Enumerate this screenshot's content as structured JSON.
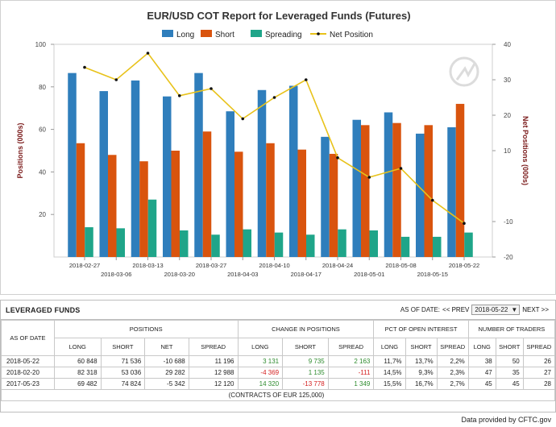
{
  "chart_data": {
    "type": "bar",
    "title": "EUR/USD COT Report for Leveraged Funds (Futures)",
    "ylabel_left": "Positions (000s)",
    "ylabel_right": "Net Positions (000s)",
    "ylim_left": [
      0,
      100
    ],
    "ylim_right": [
      -20,
      40
    ],
    "yticks_left": [
      "100",
      "80",
      "60",
      "40",
      "20"
    ],
    "yticks_right": [
      "40",
      "30",
      "20",
      "10",
      "-10",
      "-20"
    ],
    "categories": [
      "2018-02-27",
      "2018-03-06",
      "2018-03-13",
      "2018-03-20",
      "2018-03-27",
      "2018-04-03",
      "2018-04-10",
      "2018-04-17",
      "2018-04-24",
      "2018-05-01",
      "2018-05-08",
      "2018-05-15",
      "2018-05-22"
    ],
    "series": [
      {
        "name": "Long",
        "kind": "bar",
        "color": "#2f7ebc",
        "values": [
          86.5,
          78,
          83,
          75.5,
          86.5,
          68.5,
          78.5,
          80.5,
          56.5,
          64.5,
          68,
          58,
          61
        ]
      },
      {
        "name": "Short",
        "kind": "bar",
        "color": "#d9540e",
        "values": [
          53.5,
          48,
          45,
          50,
          59,
          49.5,
          53.5,
          50.5,
          48.5,
          62,
          63,
          62,
          72
        ]
      },
      {
        "name": "Spreading",
        "kind": "bar",
        "color": "#1fa589",
        "values": [
          14,
          13.5,
          27,
          12.5,
          10.5,
          13,
          11.5,
          10.5,
          13,
          12.5,
          9.5,
          9.5,
          11.5
        ]
      },
      {
        "name": "Net Position",
        "kind": "line",
        "axis": "right",
        "color": "#e8c21a",
        "values": [
          33.5,
          30,
          37.5,
          25.5,
          27.5,
          19,
          25,
          30,
          8,
          2.5,
          5,
          -4,
          -10.5
        ]
      }
    ],
    "legend_position": "top"
  },
  "table": {
    "title": "LEVERAGED FUNDS",
    "asof_label": "AS OF DATE:",
    "prev_label": "<< PREV",
    "selected_date": "2018-05-22",
    "next_label": "NEXT >>",
    "group_headers": {
      "asof": "AS OF DATE",
      "positions": "POSITIONS",
      "change": "CHANGE IN POSITIONS",
      "pct": "PCT OF OPEN INTEREST",
      "traders": "NUMBER OF TRADERS"
    },
    "columns": [
      "LONG",
      "SHORT",
      "NET",
      "SPREAD",
      "LONG",
      "SHORT",
      "SPREAD",
      "LONG",
      "SHORT",
      "SPREAD",
      "LONG",
      "SHORT",
      "SPREAD"
    ],
    "rows": [
      {
        "date": "2018-05-22",
        "cells": [
          "60 848",
          "71 536",
          "-10 688",
          "11 196",
          "3 131",
          "9 735",
          "2 163",
          "11,7%",
          "13,7%",
          "2,2%",
          "38",
          "50",
          "26"
        ],
        "signs": [
          "",
          "",
          "",
          "",
          "pos",
          "pos",
          "pos",
          "",
          "",
          "",
          "",
          "",
          ""
        ]
      },
      {
        "date": "2018-02-20",
        "cells": [
          "82 318",
          "53 036",
          "29 282",
          "12 988",
          "-4 369",
          "1 135",
          "-111",
          "14,5%",
          "9,3%",
          "2,3%",
          "47",
          "35",
          "27"
        ],
        "signs": [
          "",
          "",
          "",
          "",
          "neg",
          "pos",
          "neg",
          "",
          "",
          "",
          "",
          "",
          ""
        ]
      },
      {
        "date": "2017-05-23",
        "cells": [
          "69 482",
          "74 824",
          "-5 342",
          "12 120",
          "14 320",
          "-13 778",
          "1 349",
          "15,5%",
          "16,7%",
          "2,7%",
          "45",
          "45",
          "28"
        ],
        "signs": [
          "",
          "",
          "",
          "",
          "pos",
          "neg",
          "pos",
          "",
          "",
          "",
          "",
          "",
          ""
        ]
      }
    ],
    "footnote": "(CONTRACTS OF EUR 125,000)"
  },
  "provided_by": "Data provided by CFTC.gov"
}
